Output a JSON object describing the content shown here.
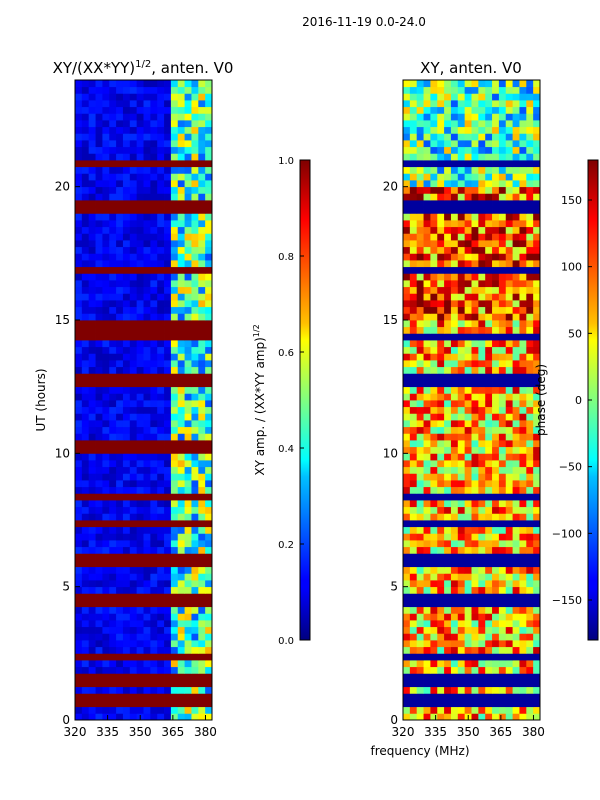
{
  "suptitle": "2016-11-19 0.0-24.0",
  "chart_data": [
    {
      "type": "heatmap",
      "title": "XY/(XX*YY)",
      "title_superscript": "1/2",
      "title_suffix": ", anten. V0",
      "xlabel": "",
      "ylabel": "UT (hours)",
      "xlim": [
        320,
        383
      ],
      "ylim": [
        0,
        24
      ],
      "xticks": [
        320,
        335,
        350,
        365,
        380
      ],
      "yticks": [
        0,
        5,
        10,
        15,
        20
      ],
      "colorbar": {
        "label": "XY amp. / (XX*YY amp)",
        "label_superscript": "1/2",
        "range": [
          0.0,
          1.0
        ],
        "ticks": [
          "0.0",
          "0.2",
          "0.4",
          "0.6",
          "0.8",
          "1.0"
        ],
        "colormap": "jet"
      },
      "saturated_bands_hours": [
        0.8,
        1.5,
        2.4,
        4.5,
        6.0,
        7.4,
        8.4,
        10.3,
        12.8,
        14.4,
        14.7,
        16.9,
        19.3,
        20.9
      ],
      "active_band_mhz": [
        363,
        382
      ]
    },
    {
      "type": "heatmap",
      "title": "XY, anten. V0",
      "xlabel": "frequency (MHz)",
      "ylabel": "",
      "xlim": [
        320,
        383
      ],
      "ylim": [
        0,
        24
      ],
      "xticks": [
        320,
        335,
        350,
        365,
        380
      ],
      "yticks": [
        0,
        5,
        10,
        15,
        20
      ],
      "colorbar": {
        "label": "phase (deg)",
        "range": [
          -180,
          180
        ],
        "ticks": [
          "−150",
          "−100",
          "−50",
          "0",
          "50",
          "100",
          "150"
        ],
        "colormap": "jet"
      },
      "dark_bands_hours": [
        0.8,
        1.5,
        2.4,
        4.5,
        6.0,
        7.4,
        8.4,
        12.8,
        14.4,
        16.9,
        19.3,
        20.9
      ]
    }
  ]
}
